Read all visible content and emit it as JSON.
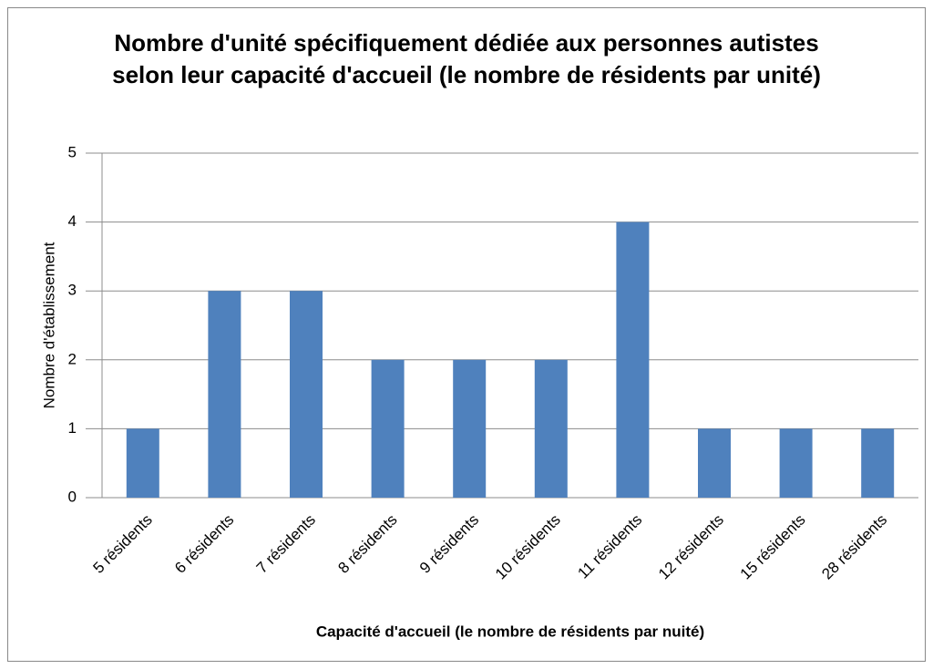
{
  "chart_data": {
    "type": "bar",
    "title": "Nombre d'unité spécifiquement dédiée aux personnes autistes selon leur capacité d'accueil (le nombre de résidents par unité)",
    "x_label": "Capacité d'accueil (le nombre de résidents par nuité)",
    "y_label": "Nombre d'établissement",
    "categories": [
      "5 résidents",
      "6 résidents",
      "7 résidents",
      "8 résidents",
      "9 résidents",
      "10 résidents",
      "11 résidents",
      "12 résidents",
      "15 résidents",
      "28 résidents"
    ],
    "values": [
      1,
      3,
      3,
      2,
      2,
      2,
      4,
      1,
      1,
      1
    ],
    "color": "#4f81bd",
    "ylim": [
      0,
      5
    ],
    "yticks": [
      0,
      1,
      2,
      3,
      4,
      5
    ],
    "grid": true
  }
}
